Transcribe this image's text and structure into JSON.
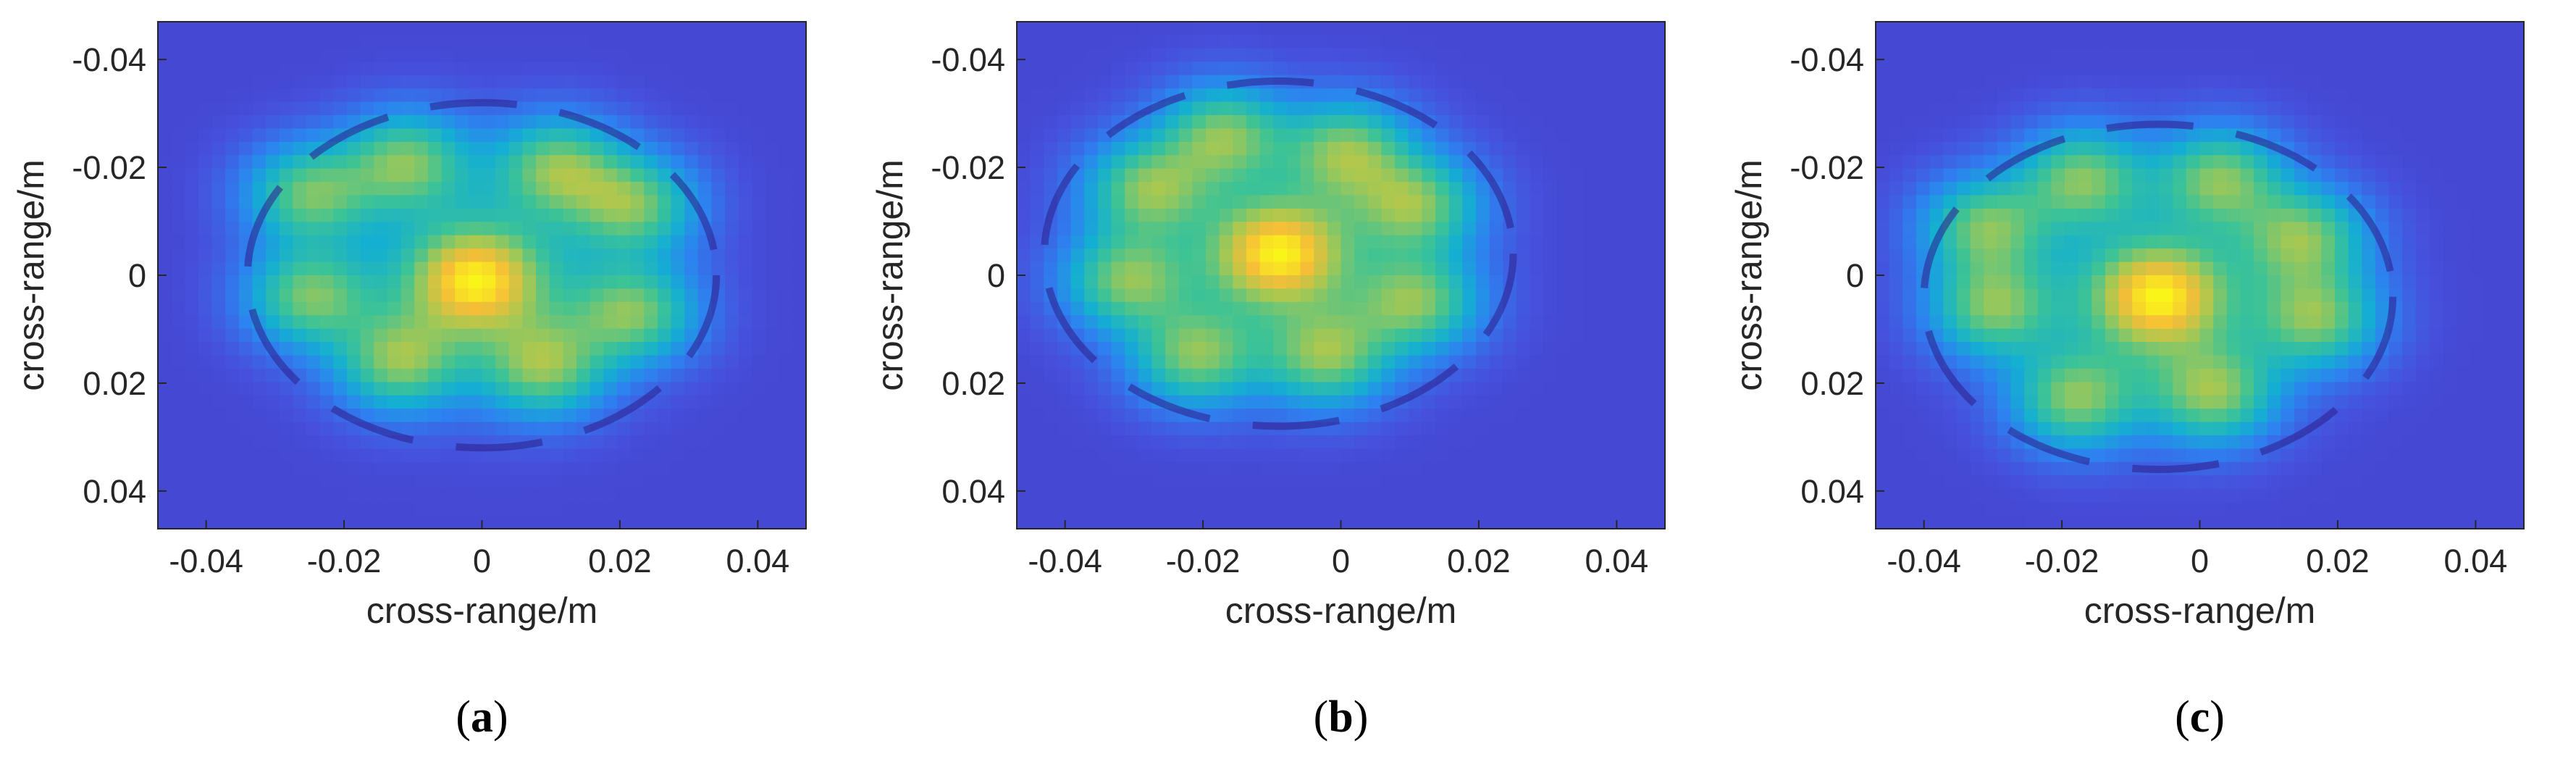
{
  "panels": [
    {
      "label": "a"
    },
    {
      "label": "b"
    },
    {
      "label": "c"
    }
  ],
  "chart_data": [
    {
      "type": "heatmap",
      "caption_letter": "a",
      "xlabel": "cross-range/m",
      "ylabel": "cross-range/m",
      "xlim": [
        -0.047,
        0.047
      ],
      "ylim": [
        -0.047,
        0.047
      ],
      "y_reversed": true,
      "x_ticks": [
        -0.04,
        -0.02,
        0,
        0.02,
        0.04
      ],
      "x_tick_labels": [
        "-0.04",
        "-0.02",
        "0",
        "0.02",
        "0.04"
      ],
      "y_ticks": [
        -0.04,
        -0.02,
        0,
        0.02,
        0.04
      ],
      "y_tick_labels": [
        "-0.04",
        "-0.02",
        "0",
        "0.02",
        "0.04"
      ],
      "colormap": "parula",
      "grid": false,
      "scatterer_center": [
        0.0,
        0.0
      ],
      "center_peak": [
        -0.001,
        0.001
      ],
      "lobe_peaks": [
        [
          -0.011,
          -0.021
        ],
        [
          0.011,
          -0.02
        ],
        [
          0.022,
          -0.013
        ],
        [
          0.022,
          0.007
        ],
        [
          0.009,
          0.017
        ],
        [
          -0.012,
          0.016
        ],
        [
          -0.025,
          0.004
        ],
        [
          -0.025,
          -0.015
        ]
      ]
    },
    {
      "type": "heatmap",
      "caption_letter": "b",
      "xlabel": "cross-range/m",
      "ylabel": "cross-range/m",
      "xlim": [
        -0.047,
        0.047
      ],
      "ylim": [
        -0.047,
        0.047
      ],
      "y_reversed": true,
      "x_ticks": [
        -0.04,
        -0.02,
        0,
        0.02,
        0.04
      ],
      "x_tick_labels": [
        "-0.04",
        "-0.02",
        "0",
        "0.02",
        "0.04"
      ],
      "y_ticks": [
        -0.04,
        -0.02,
        0,
        0.02,
        0.04
      ],
      "y_tick_labels": [
        "-0.04",
        "-0.02",
        "0",
        "0.02",
        "0.04"
      ],
      "colormap": "parula",
      "grid": false,
      "scatterer_center": [
        -0.009,
        -0.004
      ],
      "center_peak": [
        -0.009,
        -0.004
      ],
      "lobe_peaks": [
        [
          -0.017,
          -0.026
        ],
        [
          0.001,
          -0.023
        ],
        [
          0.011,
          -0.013
        ],
        [
          0.011,
          0.005
        ],
        [
          -0.002,
          0.015
        ],
        [
          -0.021,
          0.015
        ],
        [
          -0.031,
          0.001
        ],
        [
          -0.028,
          -0.016
        ]
      ]
    },
    {
      "type": "heatmap",
      "caption_letter": "c",
      "xlabel": "cross-range/m",
      "ylabel": "cross-range/m",
      "xlim": [
        -0.047,
        0.047
      ],
      "ylim": [
        -0.047,
        0.047
      ],
      "y_reversed": true,
      "x_ticks": [
        -0.04,
        -0.02,
        0,
        0.02,
        0.04
      ],
      "x_tick_labels": [
        "-0.04",
        "-0.02",
        "0",
        "0.02",
        "0.04"
      ],
      "y_ticks": [
        -0.04,
        -0.02,
        0,
        0.02,
        0.04
      ],
      "y_tick_labels": [
        "-0.04",
        "-0.02",
        "0",
        "0.02",
        "0.04"
      ],
      "colormap": "parula",
      "grid": false,
      "scatterer_center": [
        -0.006,
        0.004
      ],
      "center_peak": [
        -0.006,
        0.004
      ],
      "lobe_peaks": [
        [
          -0.017,
          -0.018
        ],
        [
          0.003,
          -0.018
        ],
        [
          0.015,
          -0.007
        ],
        [
          0.017,
          0.008
        ],
        [
          0.002,
          0.022
        ],
        [
          -0.018,
          0.023
        ],
        [
          -0.03,
          0.006
        ],
        [
          -0.031,
          -0.009
        ]
      ]
    }
  ]
}
